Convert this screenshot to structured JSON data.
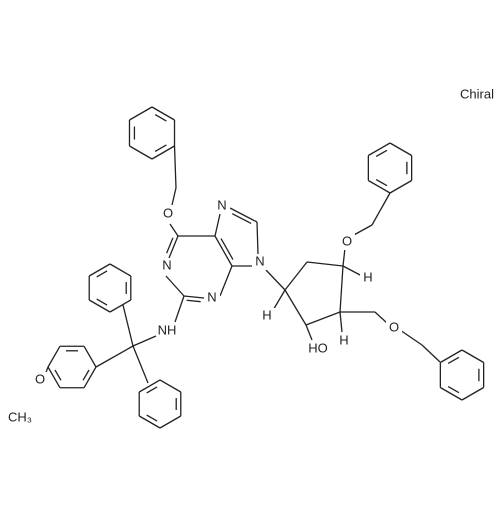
{
  "chiral": "Chiral",
  "atoms": [
    "O",
    "N",
    "N",
    "N",
    "N",
    "NH",
    "O",
    "CH₃",
    "O",
    "H",
    "H",
    "HO",
    "H",
    "O"
  ]
}
